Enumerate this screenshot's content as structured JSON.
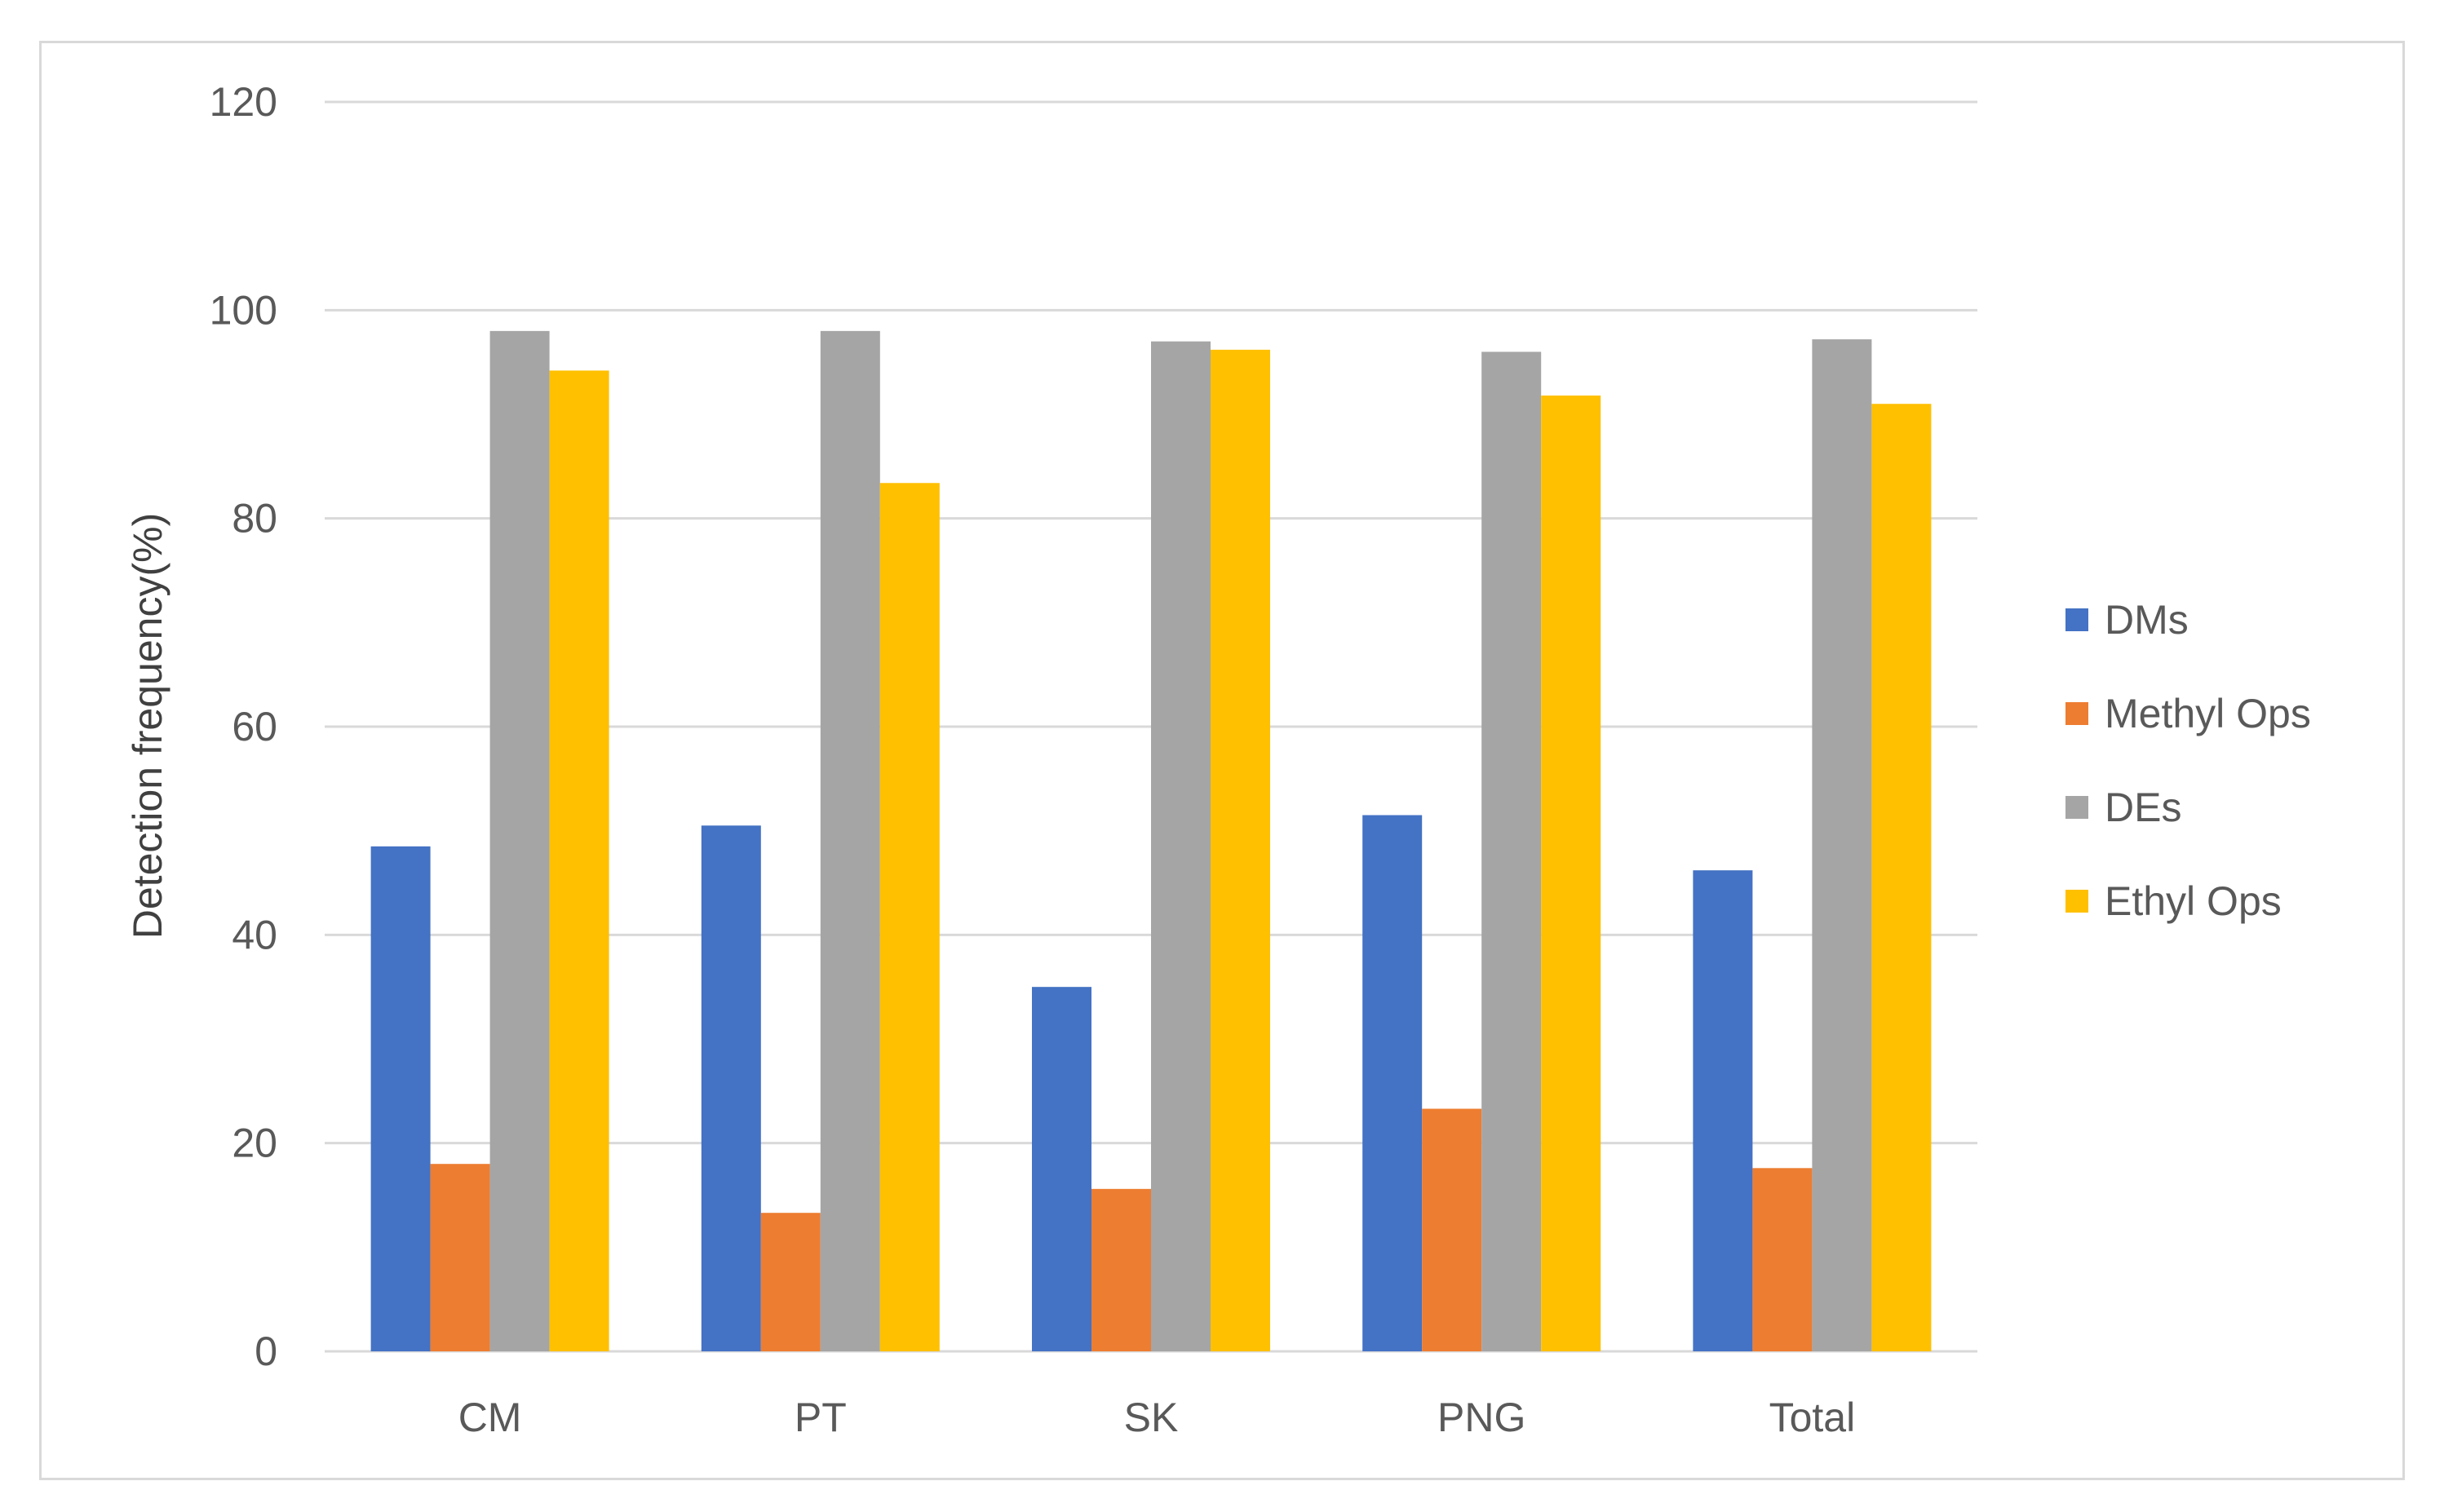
{
  "chart_data": {
    "type": "bar",
    "title": "",
    "xlabel": "",
    "ylabel": "Detection frequency(%)",
    "ylim": [
      0,
      120
    ],
    "yticks": [
      0,
      20,
      40,
      60,
      80,
      100,
      120
    ],
    "grid": true,
    "legend_position": "right",
    "categories": [
      "CM",
      "PT",
      "SK",
      "PNG",
      "Total"
    ],
    "series": [
      {
        "name": "DMs",
        "color": "#4472C4",
        "values": [
          48.5,
          50.5,
          35.0,
          51.5,
          46.2
        ]
      },
      {
        "name": "Methyl Ops",
        "color": "#ED7D31",
        "values": [
          18.0,
          13.3,
          15.6,
          23.3,
          17.6
        ]
      },
      {
        "name": "DEs",
        "color": "#A5A5A5",
        "values": [
          98.0,
          98.0,
          97.0,
          96.0,
          97.2
        ]
      },
      {
        "name": "Ethyl Ops",
        "color": "#FFC000",
        "values": [
          94.2,
          83.4,
          96.2,
          91.8,
          91.0
        ]
      }
    ]
  }
}
